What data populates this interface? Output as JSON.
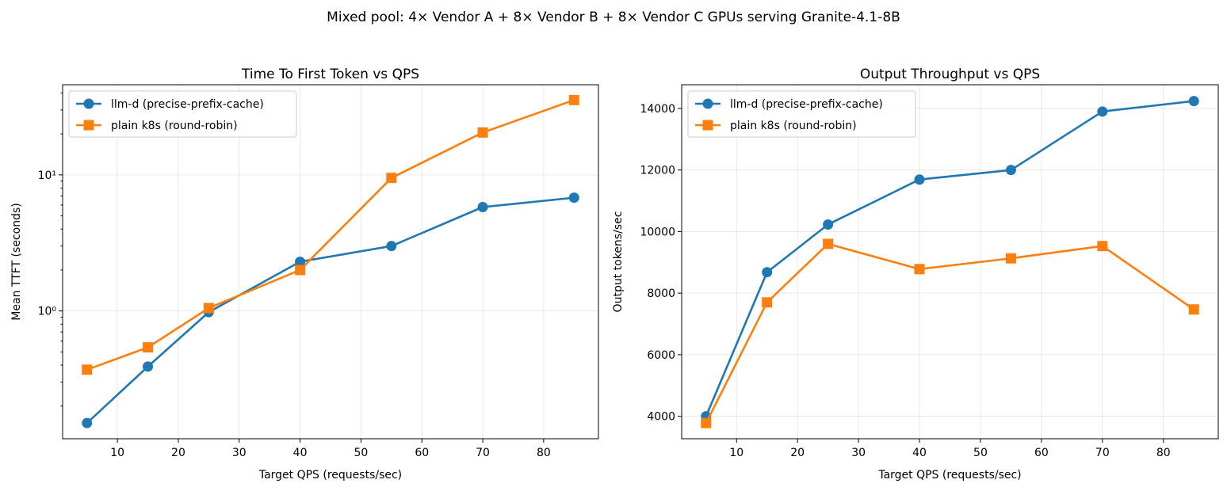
{
  "figure": {
    "suptitle": "Mixed pool: 4× Vendor A + 8× Vendor B + 8× Vendor C GPUs serving Granite-4.1-8B"
  },
  "chart_data": [
    {
      "type": "line",
      "title": "Time To First Token vs QPS",
      "xlabel": "Target QPS (requests/sec)",
      "ylabel": "Mean TTFT (seconds)",
      "yscale": "log",
      "x": [
        5,
        15,
        25,
        40,
        55,
        70,
        85
      ],
      "xlim": [
        1,
        89
      ],
      "ylim": [
        0.115,
        46
      ],
      "xticks": [
        10,
        20,
        30,
        40,
        50,
        60,
        70,
        80
      ],
      "xtick_labels": [
        "10",
        "20",
        "30",
        "40",
        "50",
        "60",
        "70",
        "80"
      ],
      "yticks_major": [
        1,
        10
      ],
      "ytick_labels": [
        "10⁰",
        "10¹"
      ],
      "grid": true,
      "legend": "upper left",
      "series": [
        {
          "name": "llm-d (precise-prefix-cache)",
          "color": "#1f77b4",
          "marker": "circle",
          "values": [
            0.15,
            0.39,
            0.98,
            2.3,
            3.0,
            5.8,
            6.8
          ]
        },
        {
          "name": "plain k8s (round-robin)",
          "color": "#ff7f0e",
          "marker": "square",
          "values": [
            0.37,
            0.54,
            1.05,
            2.0,
            9.5,
            20.5,
            35.5
          ]
        }
      ]
    },
    {
      "type": "line",
      "title": "Output Throughput vs QPS",
      "xlabel": "Target QPS (requests/sec)",
      "ylabel": "Output tokens/sec",
      "yscale": "linear",
      "x": [
        5,
        15,
        25,
        40,
        55,
        70,
        85
      ],
      "xlim": [
        1,
        89
      ],
      "ylim": [
        3270,
        14770
      ],
      "xticks": [
        10,
        20,
        30,
        40,
        50,
        60,
        70,
        80
      ],
      "xtick_labels": [
        "10",
        "20",
        "30",
        "40",
        "50",
        "60",
        "70",
        "80"
      ],
      "yticks": [
        4000,
        6000,
        8000,
        10000,
        12000,
        14000
      ],
      "ytick_labels": [
        "4000",
        "6000",
        "8000",
        "10000",
        "12000",
        "14000"
      ],
      "grid": true,
      "legend": "upper left",
      "series": [
        {
          "name": "llm-d (precise-prefix-cache)",
          "color": "#1f77b4",
          "marker": "circle",
          "values": [
            4000,
            8680,
            10230,
            11690,
            12000,
            13900,
            14240
          ]
        },
        {
          "name": "plain k8s (round-robin)",
          "color": "#ff7f0e",
          "marker": "square",
          "values": [
            3780,
            7700,
            9600,
            8780,
            9130,
            9530,
            7470
          ]
        }
      ]
    }
  ]
}
